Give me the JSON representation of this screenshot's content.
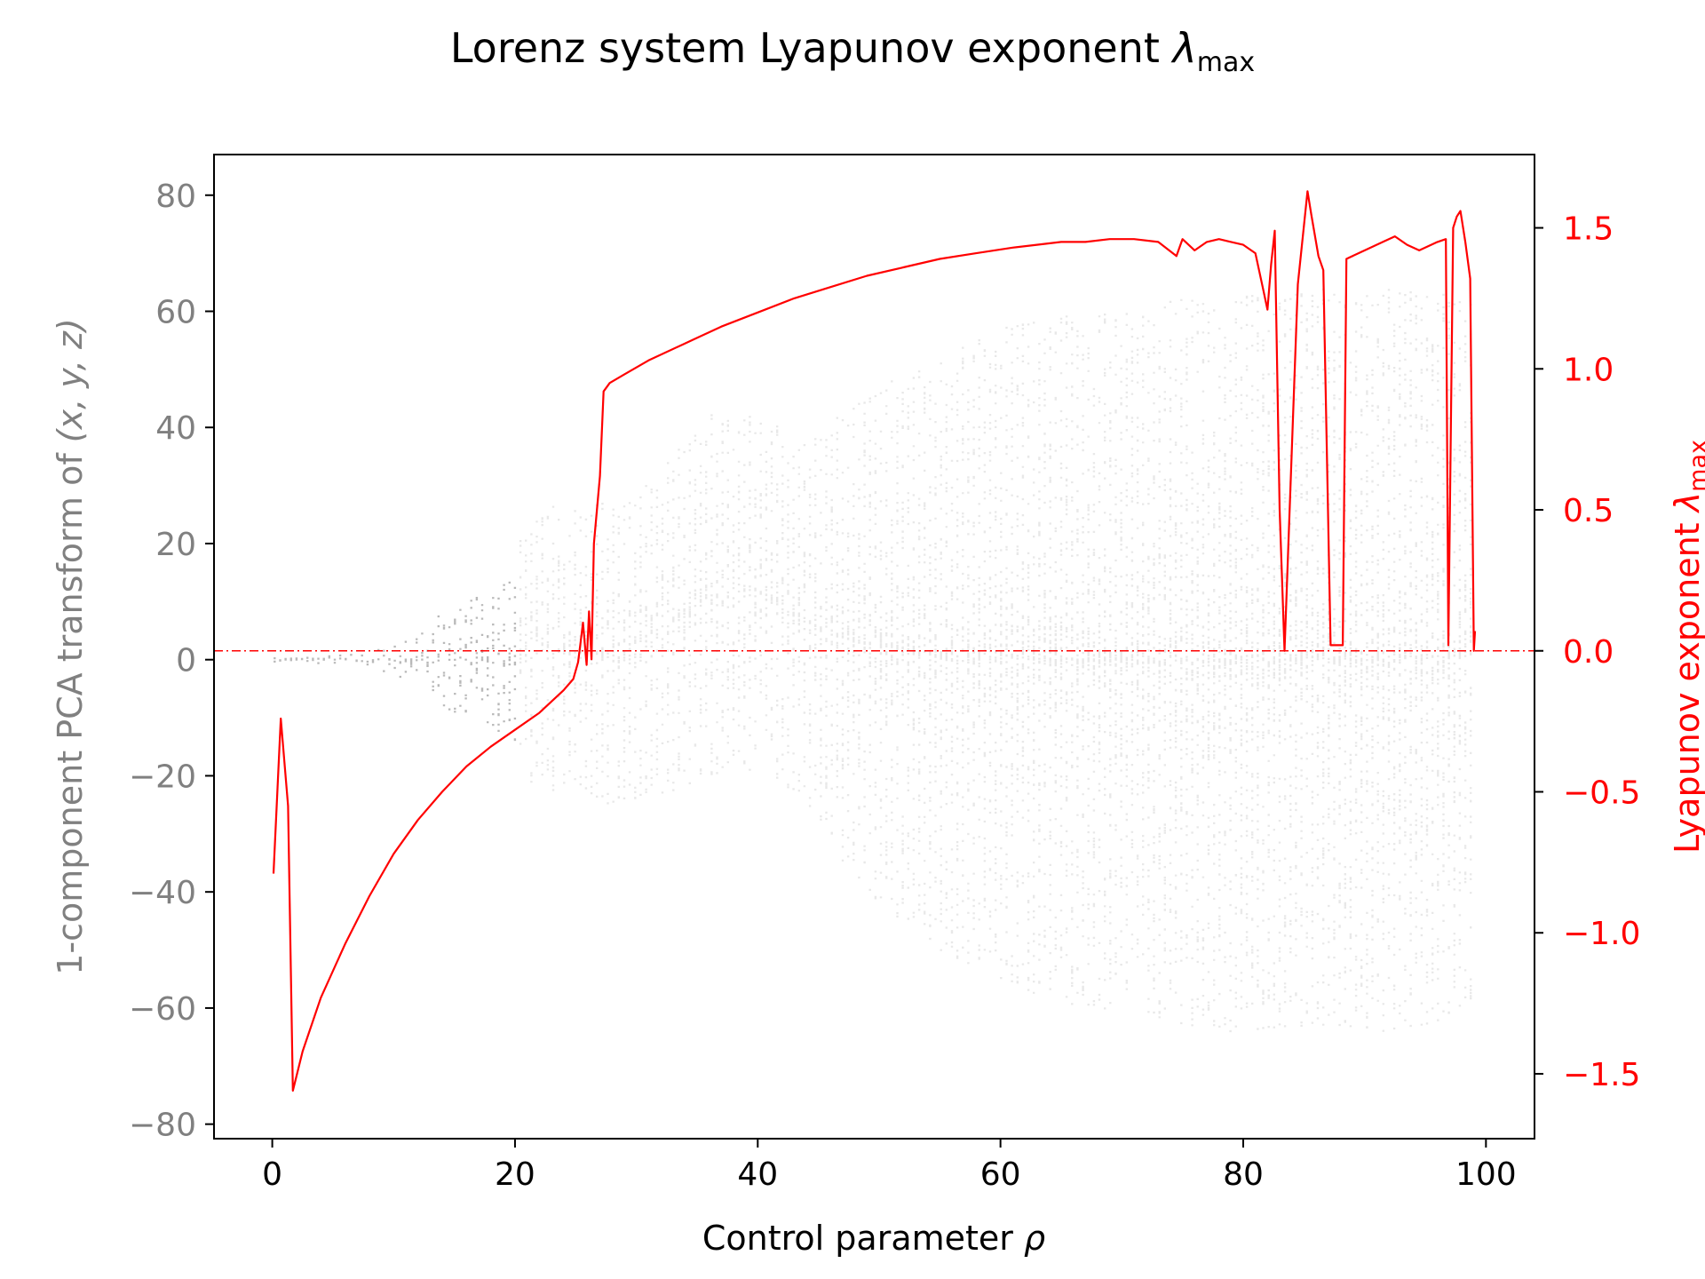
{
  "chart_data": {
    "type": "scatter",
    "title": "Lorenz system Lyapunov exponent",
    "title_symbol": "λ",
    "title_subscript": "max",
    "xlabel": "Control parameter",
    "xlabel_symbol": "ρ",
    "ylabel_left": "1-component PCA transform of",
    "ylabel_left_math": "(x, y, z)",
    "ylabel_right": "Lyapunov exponent",
    "ylabel_right_symbol": "λ",
    "ylabel_right_subscript": "max",
    "xlim": [
      -4.8,
      104
    ],
    "ylim_left": [
      -82.5,
      87
    ],
    "ylim_right": [
      -1.73,
      1.76
    ],
    "x_ticks": [
      {
        "value": 0,
        "label": "0"
      },
      {
        "value": 20,
        "label": "20"
      },
      {
        "value": 40,
        "label": "40"
      },
      {
        "value": 60,
        "label": "60"
      },
      {
        "value": 80,
        "label": "80"
      },
      {
        "value": 100,
        "label": "100"
      }
    ],
    "y_left_ticks": [
      {
        "value": 80,
        "label": "80"
      },
      {
        "value": 60,
        "label": "60"
      },
      {
        "value": 40,
        "label": "40"
      },
      {
        "value": 20,
        "label": "20"
      },
      {
        "value": 0,
        "label": "0"
      },
      {
        "value": -20,
        "label": "−20"
      },
      {
        "value": -40,
        "label": "−40"
      },
      {
        "value": -60,
        "label": "−60"
      },
      {
        "value": -80,
        "label": "−80"
      }
    ],
    "y_right_ticks": [
      {
        "value": 1.5,
        "label": "1.5"
      },
      {
        "value": 1.0,
        "label": "1.0"
      },
      {
        "value": 0.5,
        "label": "0.5"
      },
      {
        "value": 0.0,
        "label": "0.0"
      },
      {
        "value": -0.5,
        "label": "−0.5"
      },
      {
        "value": -1.0,
        "label": "−1.0"
      },
      {
        "value": -1.5,
        "label": "−1.5"
      }
    ],
    "reference_line": {
      "axis": "right",
      "value": 0.0,
      "style": "dash-dot",
      "color": "#ff0000"
    },
    "colors": {
      "scatter": "#808080",
      "lyapunov_line": "#ff0000",
      "left_axis_text": "#808080",
      "right_axis_text": "#ff0000"
    },
    "series": [
      {
        "kind": "line",
        "axis": "right",
        "color": "#ff0000",
        "x": [
          0.1,
          0.7,
          1.3,
          1.7,
          2.5,
          4,
          6,
          8,
          10,
          12,
          14,
          16,
          18,
          20,
          22,
          24,
          24.8,
          25.2,
          25.4,
          25.6,
          25.9,
          26.1,
          26.3,
          26.5,
          27.0,
          27.3,
          27.8,
          29,
          31,
          34,
          37,
          40,
          43,
          46,
          49,
          52,
          55,
          58,
          61,
          63,
          65,
          67,
          69,
          71,
          73,
          74.5,
          75,
          76,
          77,
          78,
          79,
          80,
          81,
          81.6,
          82.0,
          82.3,
          82.6,
          83.0,
          83.4,
          84.5,
          85.3,
          85.6,
          86.2,
          86.6,
          87.2,
          87.5,
          88.2,
          88.5,
          89.5,
          90.5,
          91.5,
          92.5,
          93.5,
          94.5,
          96,
          96.7,
          96.9,
          97.3,
          97.6,
          97.9,
          98.3,
          98.7,
          99.0,
          99.1
        ],
        "y": [
          -0.79,
          -0.24,
          -0.55,
          -1.56,
          -1.42,
          -1.23,
          -1.04,
          -0.87,
          -0.72,
          -0.6,
          -0.5,
          -0.41,
          -0.34,
          -0.28,
          -0.22,
          -0.14,
          -0.1,
          -0.04,
          0.03,
          0.1,
          -0.05,
          0.14,
          -0.03,
          0.38,
          0.62,
          0.92,
          0.95,
          0.98,
          1.03,
          1.09,
          1.15,
          1.2,
          1.25,
          1.29,
          1.33,
          1.36,
          1.39,
          1.41,
          1.43,
          1.44,
          1.45,
          1.45,
          1.46,
          1.46,
          1.45,
          1.4,
          1.46,
          1.42,
          1.45,
          1.46,
          1.45,
          1.44,
          1.41,
          1.29,
          1.21,
          1.37,
          1.49,
          0.5,
          0.0,
          1.3,
          1.63,
          1.55,
          1.4,
          1.35,
          0.02,
          0.02,
          0.02,
          1.39,
          1.41,
          1.43,
          1.45,
          1.47,
          1.44,
          1.42,
          1.45,
          1.46,
          0.02,
          1.5,
          1.54,
          1.56,
          1.45,
          1.32,
          0.0,
          0.07
        ]
      },
      {
        "kind": "scatter-band",
        "axis": "left",
        "color": "#808080",
        "opacity": "faint",
        "x": [
          0,
          2,
          5,
          8,
          10,
          12,
          14,
          16,
          18,
          20,
          20.5,
          22,
          24,
          26,
          28,
          30,
          32,
          34,
          36,
          38,
          40,
          42,
          44,
          46,
          48,
          50,
          52,
          55,
          58,
          60,
          62,
          65,
          68,
          70,
          72,
          75,
          78,
          80,
          82,
          85,
          87,
          88,
          90,
          92,
          95,
          97,
          99
        ],
        "upper": [
          0.3,
          0.6,
          0.8,
          1.5,
          3,
          5,
          8,
          10,
          12,
          14,
          22,
          28,
          26,
          26,
          28,
          30,
          34,
          38,
          42,
          43,
          43,
          40,
          38,
          42,
          44,
          47,
          49,
          52,
          55,
          57,
          58,
          59,
          60,
          61,
          61,
          62,
          63,
          63,
          63,
          64,
          64,
          63,
          64,
          64,
          64,
          63,
          62
        ],
        "lower": [
          -0.3,
          -0.6,
          -0.8,
          -1.5,
          -3,
          -5,
          -8,
          -10,
          -12,
          -14,
          -20,
          -22,
          -23,
          -24,
          -25,
          -24,
          -23,
          -22,
          -20,
          -19,
          -19,
          -21,
          -25,
          -32,
          -38,
          -42,
          -45,
          -50,
          -53,
          -55,
          -57,
          -59,
          -60,
          -61,
          -62,
          -63,
          -64,
          -64,
          -64,
          -63,
          -63,
          -63,
          -64,
          -64,
          -63,
          -62,
          -60
        ]
      }
    ]
  }
}
